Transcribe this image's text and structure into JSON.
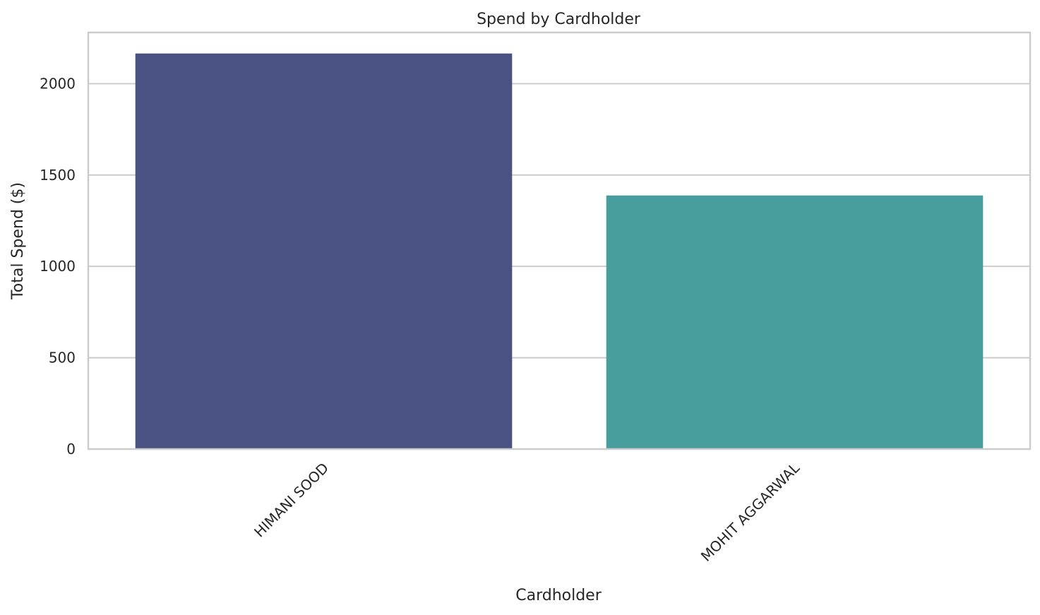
{
  "chart_data": {
    "type": "bar",
    "title": "Spend by Cardholder",
    "xlabel": "Cardholder",
    "ylabel": "Total Spend ($)",
    "categories": [
      "HIMANI SOOD",
      "MOHIT AGGARWAL"
    ],
    "values": [
      2165,
      1388
    ],
    "colors": [
      "#4a5284",
      "#489d9d"
    ],
    "ylim": [
      0,
      2280
    ],
    "yticks": [
      0,
      500,
      1000,
      1500,
      2000
    ],
    "grid": "horizontal",
    "legend": "none"
  }
}
